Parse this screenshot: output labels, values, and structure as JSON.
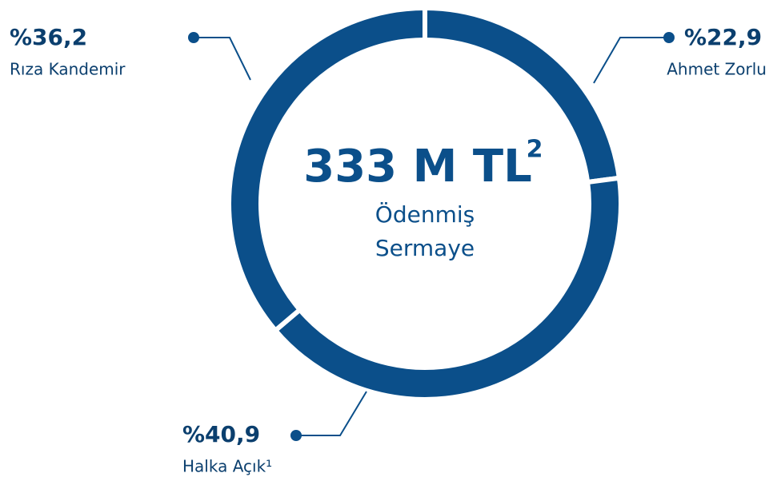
{
  "chart_data": {
    "type": "donut",
    "categories": [
      "Ahmet Zorlu",
      "Halka Açık¹",
      "Rıza Kandemir"
    ],
    "values": [
      22.9,
      40.9,
      36.2
    ],
    "value_labels": [
      "%22,9",
      "%40,9",
      "%36,2"
    ],
    "color": "#0b4f8a",
    "center_title": "333 M TL",
    "center_title_note": "2",
    "center_subtitle": [
      "Ödenmiş",
      "Sermaye"
    ]
  }
}
